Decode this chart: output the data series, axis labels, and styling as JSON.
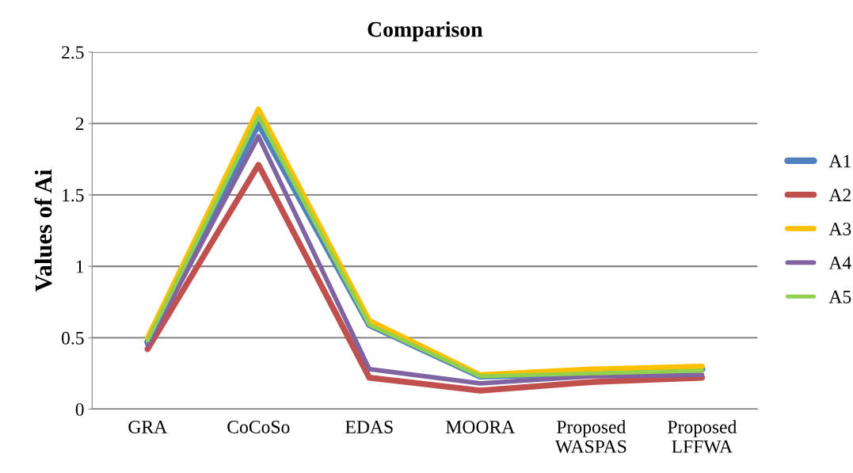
{
  "chart_data": {
    "type": "line",
    "title": "Comparison",
    "ylabel": "Values of Ai",
    "categories": [
      "GRA",
      "CoCoSo",
      "EDAS",
      "MOORA",
      "Proposed\nWASPAS",
      "Proposed\nLFFWA"
    ],
    "series": [
      {
        "name": "A1",
        "color": "#4f81bd",
        "values": [
          0.47,
          2.0,
          0.59,
          0.23,
          0.25,
          0.28
        ]
      },
      {
        "name": "A2",
        "color": "#c0504d",
        "values": [
          0.42,
          1.71,
          0.22,
          0.13,
          0.19,
          0.22
        ]
      },
      {
        "name": "A3",
        "color": "#ffc000",
        "values": [
          0.5,
          2.1,
          0.62,
          0.24,
          0.28,
          0.3
        ]
      },
      {
        "name": "A4",
        "color": "#8064a2",
        "values": [
          0.45,
          1.91,
          0.28,
          0.18,
          0.23,
          0.24
        ]
      },
      {
        "name": "A5",
        "color": "#92d050",
        "values": [
          0.48,
          2.05,
          0.59,
          0.23,
          0.25,
          0.27
        ]
      }
    ],
    "ylim": [
      0,
      2.5
    ],
    "yticks": [
      0,
      0.5,
      1,
      1.5,
      2,
      2.5
    ],
    "grid": "y",
    "legend": "right",
    "marker": "none",
    "line_style": "solid"
  }
}
